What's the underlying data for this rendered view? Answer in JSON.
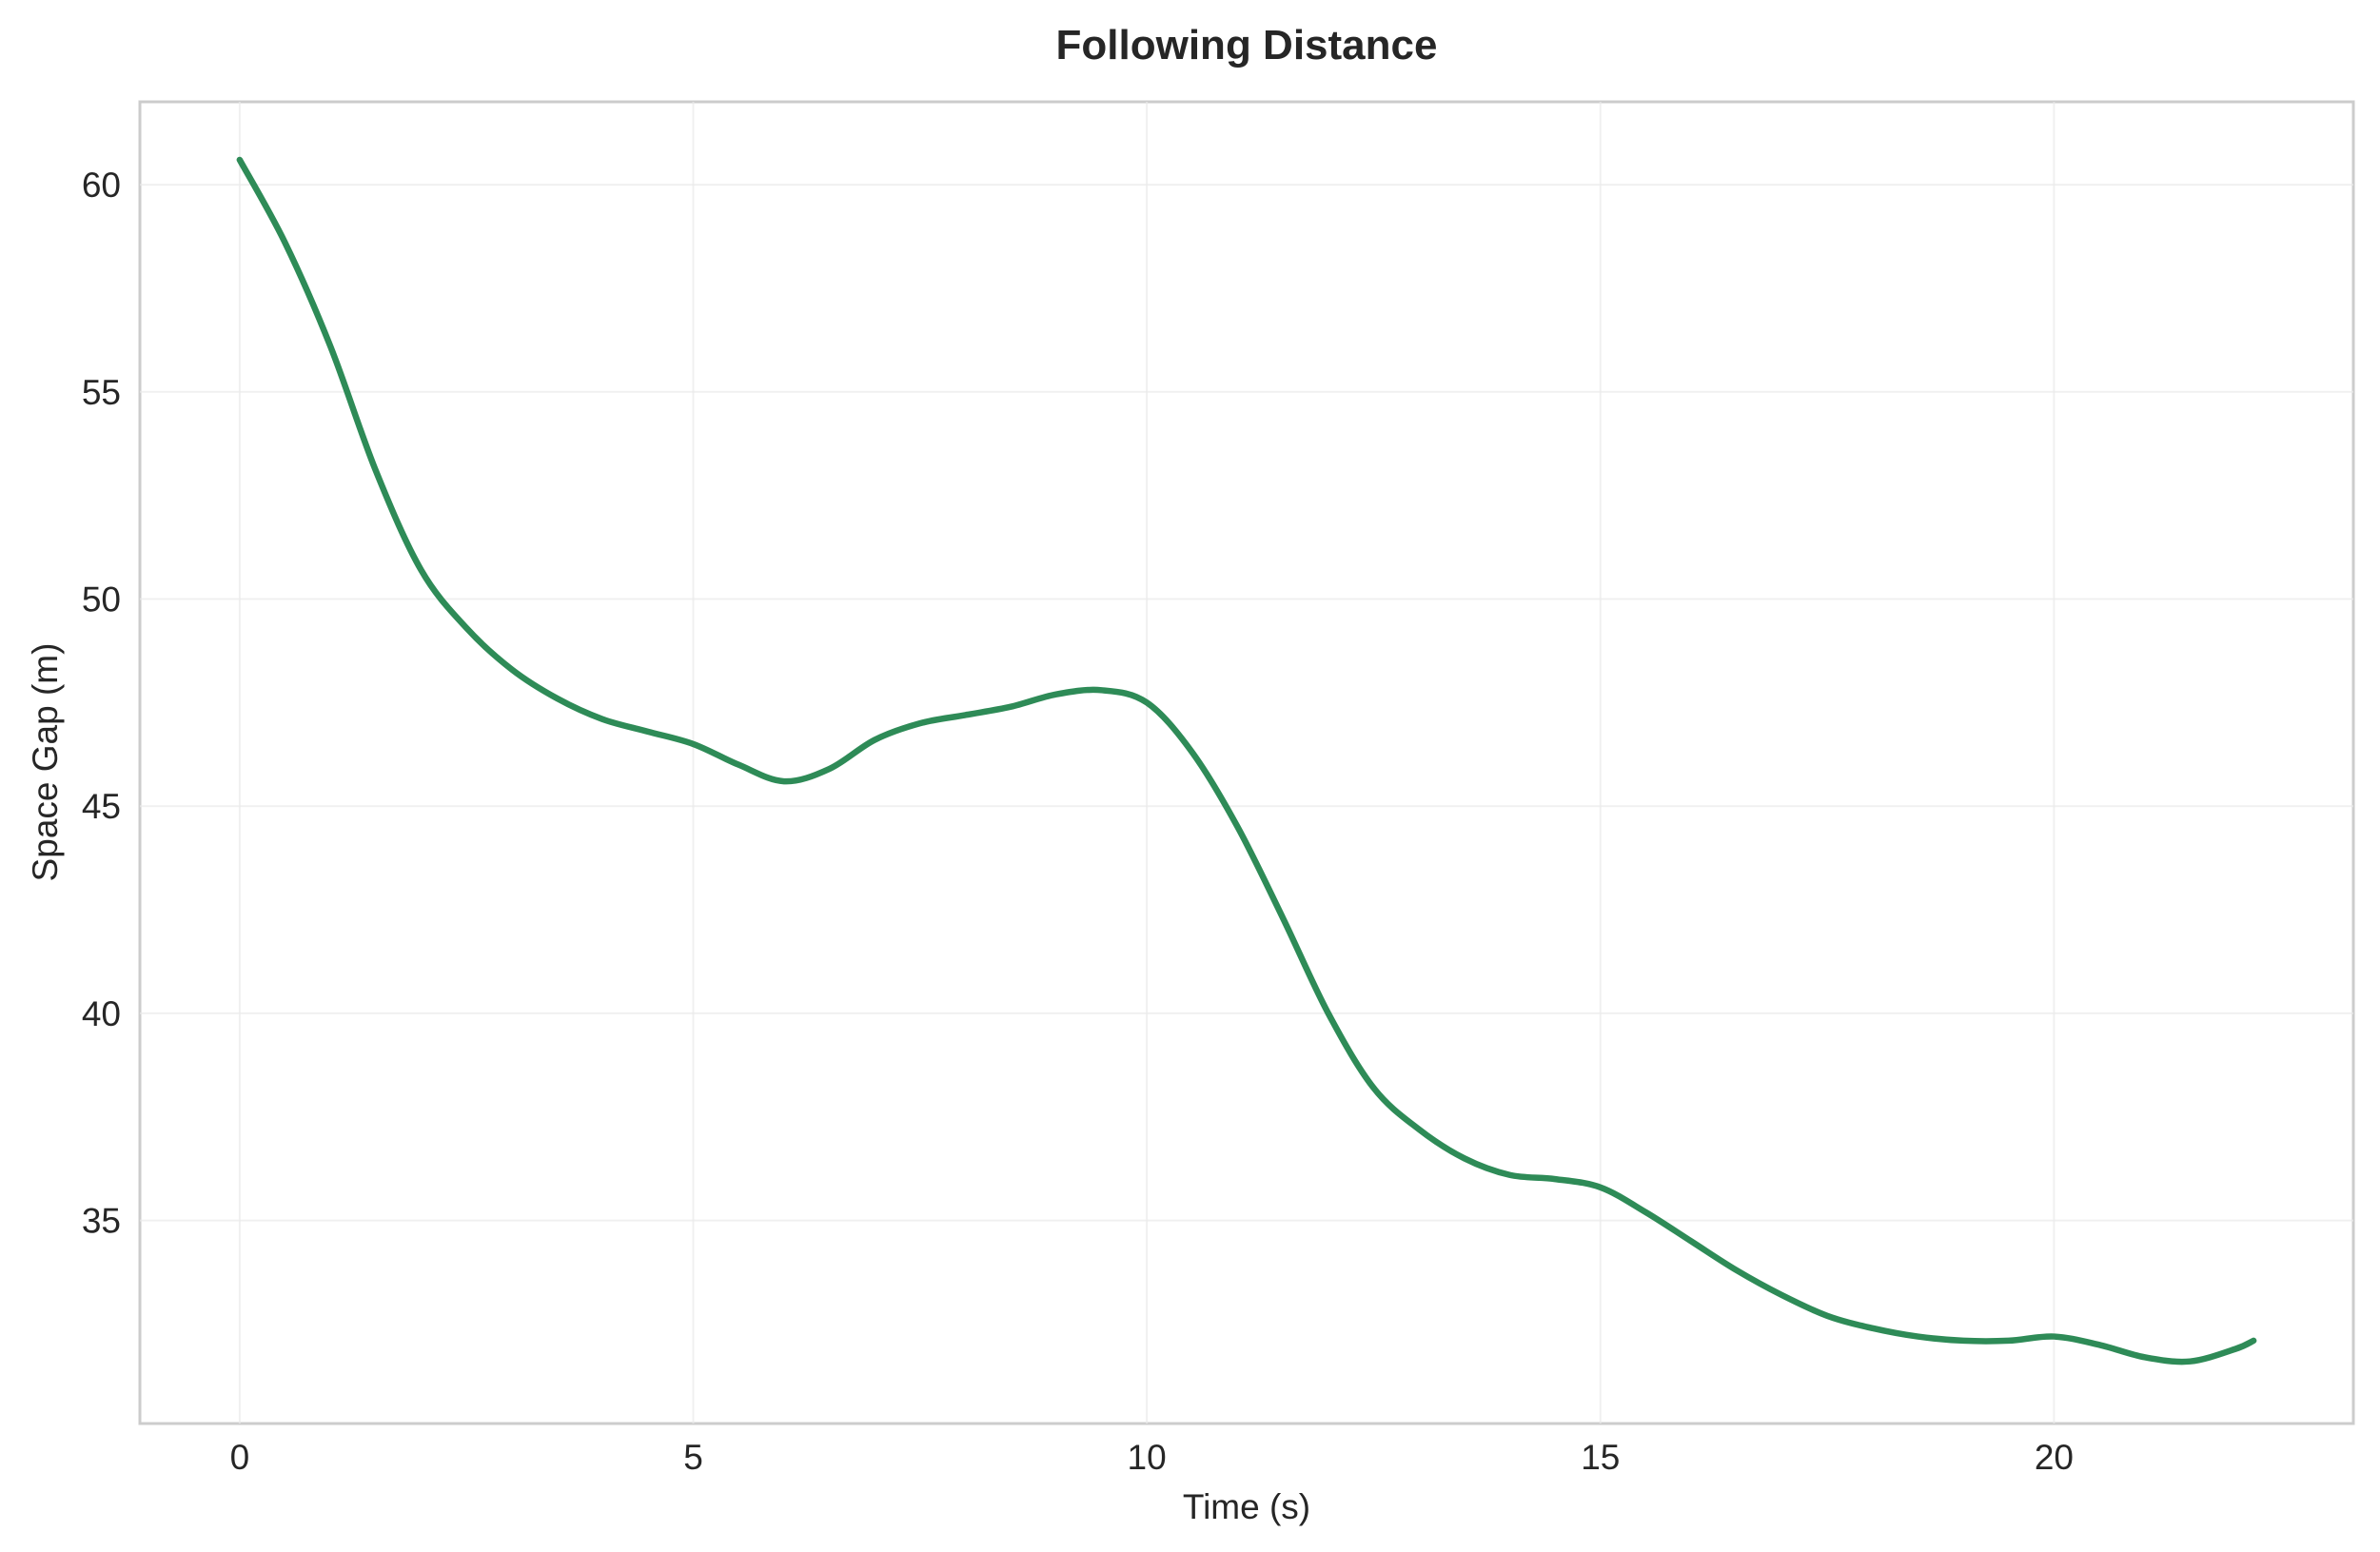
{
  "chart_data": {
    "type": "line",
    "title": "Following Distance",
    "xlabel": "Time (s)",
    "ylabel": "Space Gap (m)",
    "xlim": [
      -1.1,
      23.3
    ],
    "ylim": [
      30.1,
      62.0
    ],
    "xticks": [
      0,
      5,
      10,
      15,
      20
    ],
    "yticks": [
      35,
      40,
      45,
      50,
      55,
      60
    ],
    "grid": true,
    "legend": "none",
    "colors": {
      "line": "#2e8b57",
      "frame": "#cccccc",
      "grid": "#ebebeb",
      "text": "#262626"
    },
    "series": [
      {
        "x": [
          0,
          0.5,
          1.0,
          1.5,
          2.0,
          2.5,
          3.0,
          3.5,
          4.0,
          4.5,
          5.0,
          5.5,
          6.0,
          6.5,
          7.0,
          7.5,
          8.0,
          8.5,
          9.0,
          9.5,
          10.0,
          10.5,
          11.0,
          11.5,
          12.0,
          12.5,
          13.0,
          13.5,
          14.0,
          14.5,
          15.0,
          15.5,
          16.0,
          16.5,
          17.0,
          17.5,
          18.0,
          18.5,
          19.0,
          19.5,
          20.0,
          20.5,
          21.0,
          21.5,
          22.0,
          22.2
        ],
        "values": [
          60.6,
          58.6,
          56.1,
          53.1,
          50.7,
          49.3,
          48.3,
          47.6,
          47.1,
          46.8,
          46.5,
          46.0,
          45.6,
          45.9,
          46.6,
          47.0,
          47.2,
          47.4,
          47.7,
          47.8,
          47.5,
          46.3,
          44.5,
          42.3,
          40.0,
          38.2,
          37.2,
          36.5,
          36.1,
          36.0,
          35.8,
          35.2,
          34.5,
          33.8,
          33.2,
          32.7,
          32.4,
          32.2,
          32.1,
          32.1,
          32.2,
          32.0,
          31.7,
          31.6,
          31.9,
          32.1
        ]
      }
    ]
  }
}
